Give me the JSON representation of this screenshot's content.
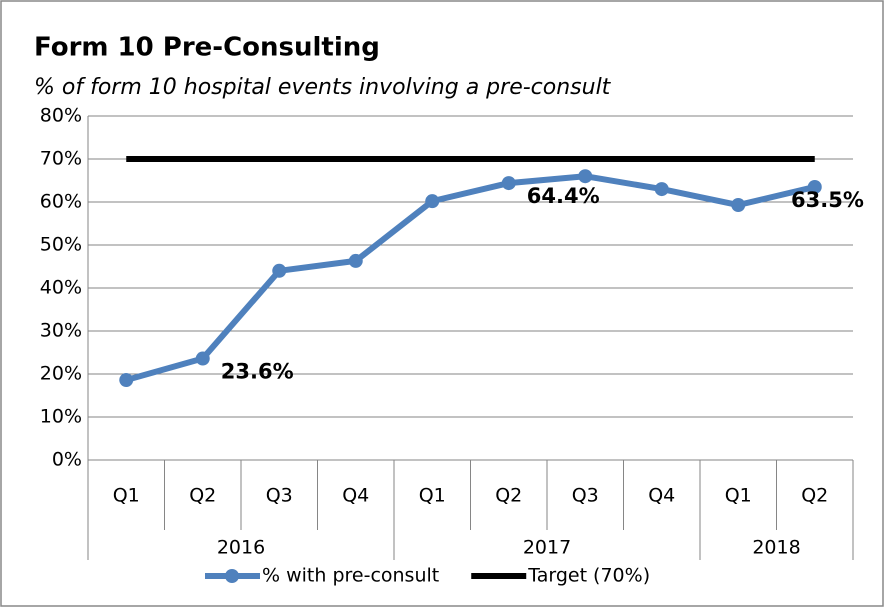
{
  "chart_data": {
    "type": "line",
    "title": "Form 10 Pre-Consulting",
    "subtitle": "% of form 10 hospital events involving a pre-consult",
    "categories": [
      "Q1",
      "Q2",
      "Q3",
      "Q4",
      "Q1",
      "Q2",
      "Q3",
      "Q4",
      "Q1",
      "Q2"
    ],
    "groups": [
      {
        "label": "2016",
        "count": 4
      },
      {
        "label": "2017",
        "count": 4
      },
      {
        "label": "2018",
        "count": 2
      }
    ],
    "series": [
      {
        "name": "% with pre-consult",
        "color": "#4f81bd",
        "marker": true,
        "values": [
          18.6,
          23.6,
          44,
          46.3,
          60.2,
          64.4,
          66,
          63,
          59.3,
          63.5
        ],
        "value_labels": [
          null,
          "23.6%",
          null,
          null,
          null,
          "64.4%",
          null,
          null,
          null,
          "63.5%"
        ]
      },
      {
        "name": "Target (70%)",
        "color": "#000000",
        "marker": false,
        "values": [
          70,
          70,
          70,
          70,
          70,
          70,
          70,
          70,
          70,
          70
        ]
      }
    ],
    "ylim": [
      0,
      80
    ],
    "yticks": [
      {
        "value": 0,
        "label": "0%"
      },
      {
        "value": 10,
        "label": "10%"
      },
      {
        "value": 20,
        "label": "20%"
      },
      {
        "value": 30,
        "label": "30%"
      },
      {
        "value": 40,
        "label": "40%"
      },
      {
        "value": 50,
        "label": "50%"
      },
      {
        "value": 60,
        "label": "60%"
      },
      {
        "value": 70,
        "label": "70%"
      },
      {
        "value": 80,
        "label": "80%"
      }
    ],
    "grid": true,
    "legend": "bottom"
  }
}
